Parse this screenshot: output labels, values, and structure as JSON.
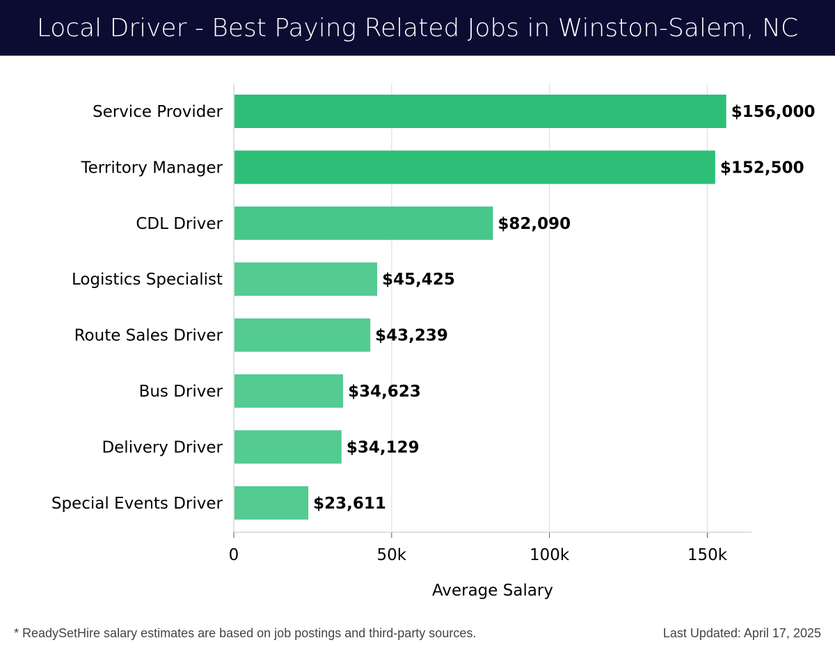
{
  "header": {
    "title": "Local Driver - Best Paying Related Jobs in Winston-Salem, NC"
  },
  "colors": {
    "header_bg": "#0c0c33",
    "bar_dark": "#2dbf78",
    "bar_mid": "#47c88a",
    "bar_light": "#53cb92",
    "grid": "#e0e0e0"
  },
  "chart_data": {
    "type": "bar",
    "orientation": "horizontal",
    "title": "Local Driver - Best Paying Related Jobs in Winston-Salem, NC",
    "xlabel": "Average Salary",
    "ylabel": "",
    "xlim": [
      0,
      164000
    ],
    "xticks": [
      0,
      50000,
      100000,
      150000
    ],
    "xtick_labels": [
      "0",
      "50k",
      "100k",
      "150k"
    ],
    "grid": true,
    "categories": [
      "Service Provider",
      "Territory Manager",
      "CDL Driver",
      "Logistics Specialist",
      "Route Sales Driver",
      "Bus Driver",
      "Delivery Driver",
      "Special Events Driver"
    ],
    "values": [
      156000,
      152500,
      82090,
      45425,
      43239,
      34623,
      34129,
      23611
    ],
    "value_labels": [
      "$156,000",
      "$152,500",
      "$82,090",
      "$45,425",
      "$43,239",
      "$34,623",
      "$34,129",
      "$23,611"
    ]
  },
  "footer": {
    "note": "* ReadySetHire salary estimates are based on job postings and third-party sources.",
    "updated": "Last Updated: April 17, 2025"
  }
}
